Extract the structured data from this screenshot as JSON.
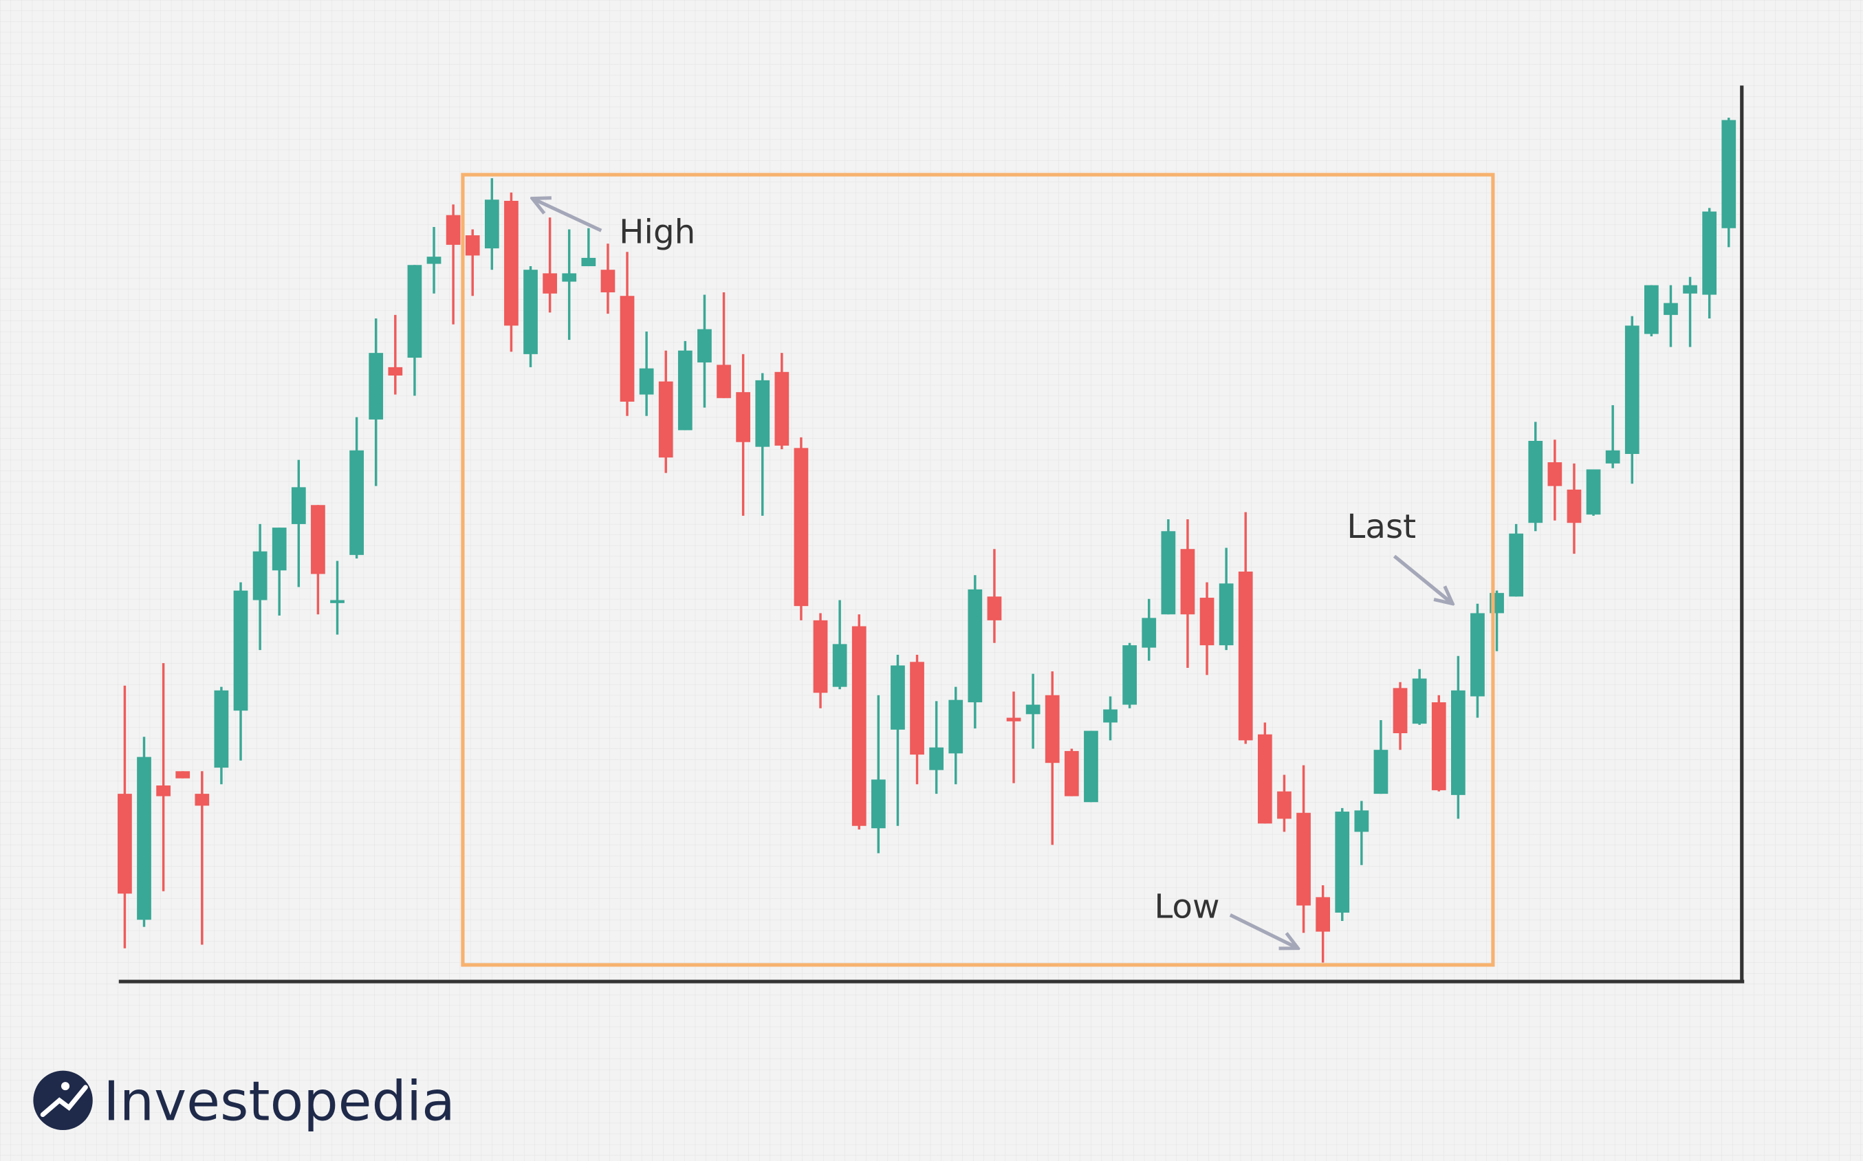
{
  "chart_data": {
    "type": "candlestick",
    "ylim": [
      0,
      754
    ],
    "up_color": "#39a896",
    "down_color": "#ef5a5a",
    "box_color": "#f7b26e",
    "annotations": [
      {
        "text": "High"
      },
      {
        "text": "Low"
      },
      {
        "text": "Last"
      }
    ],
    "open": [
      158,
      52,
      165,
      177,
      158,
      180,
      228,
      321,
      346,
      385,
      401,
      319,
      359,
      473,
      517,
      525,
      604,
      645,
      628,
      617,
      657,
      528,
      596,
      589,
      602,
      599,
      577,
      494,
      505,
      464,
      521,
      519,
      496,
      450,
      513,
      449,
      304,
      248,
      299,
      129,
      212,
      269,
      178,
      192,
      235,
      324,
      222,
      225,
      241,
      194,
      151,
      218,
      233,
      281,
      309,
      364,
      323,
      283,
      345,
      208,
      160,
      142,
      71,
      58,
      126,
      158,
      247,
      217,
      235,
      157,
      240,
      310,
      324,
      386,
      437,
      414,
      393,
      436,
      444,
      545,
      561,
      579,
      578,
      634
    ],
    "high": [
      249,
      206,
      268,
      177,
      177,
      248,
      336,
      385,
      382,
      439,
      401,
      354,
      475,
      558,
      561,
      603,
      635,
      654,
      633,
      676,
      664,
      602,
      643,
      633,
      634,
      621,
      614,
      547,
      531,
      539,
      578,
      580,
      528,
      512,
      529,
      458,
      310,
      321,
      309,
      241,
      275,
      275,
      236,
      248,
      342,
      364,
      244,
      259,
      261,
      196,
      211,
      240,
      285,
      322,
      389,
      389,
      336,
      365,
      395,
      218,
      174,
      182,
      81,
      146,
      152,
      220,
      252,
      263,
      241,
      274,
      318,
      329,
      385,
      471,
      456,
      436,
      431,
      485,
      560,
      586,
      586,
      593,
      651,
      727
    ],
    "low": [
      28,
      46,
      76,
      171,
      31,
      166,
      186,
      279,
      308,
      332,
      309,
      292,
      356,
      417,
      494,
      493,
      579,
      553,
      577,
      599,
      530,
      517,
      563,
      540,
      602,
      562,
      476,
      476,
      428,
      464,
      483,
      491,
      392,
      392,
      448,
      304,
      230,
      246,
      128,
      108,
      131,
      166,
      158,
      166,
      213,
      285,
      167,
      196,
      115,
      156,
      151,
      203,
      230,
      270,
      309,
      264,
      258,
      279,
      200,
      133,
      126,
      41,
      16,
      51,
      98,
      158,
      195,
      216,
      160,
      137,
      222,
      278,
      324,
      379,
      388,
      360,
      392,
      432,
      419,
      543,
      534,
      534,
      558,
      618
    ],
    "close": [
      74,
      189,
      156,
      171,
      148,
      245,
      329,
      362,
      382,
      416,
      343,
      321,
      447,
      529,
      510,
      603,
      610,
      620,
      611,
      658,
      552,
      599,
      579,
      596,
      609,
      580,
      488,
      516,
      441,
      531,
      549,
      491,
      454,
      506,
      451,
      316,
      243,
      284,
      131,
      170,
      266,
      191,
      197,
      237,
      330,
      304,
      219,
      233,
      184,
      156,
      211,
      229,
      283,
      306,
      379,
      309,
      283,
      335,
      203,
      133,
      137,
      64,
      42,
      143,
      144,
      195,
      209,
      255,
      161,
      245,
      310,
      327,
      377,
      455,
      417,
      386,
      431,
      447,
      552,
      586,
      571,
      586,
      648,
      725
    ]
  },
  "brand": "Investopedia"
}
